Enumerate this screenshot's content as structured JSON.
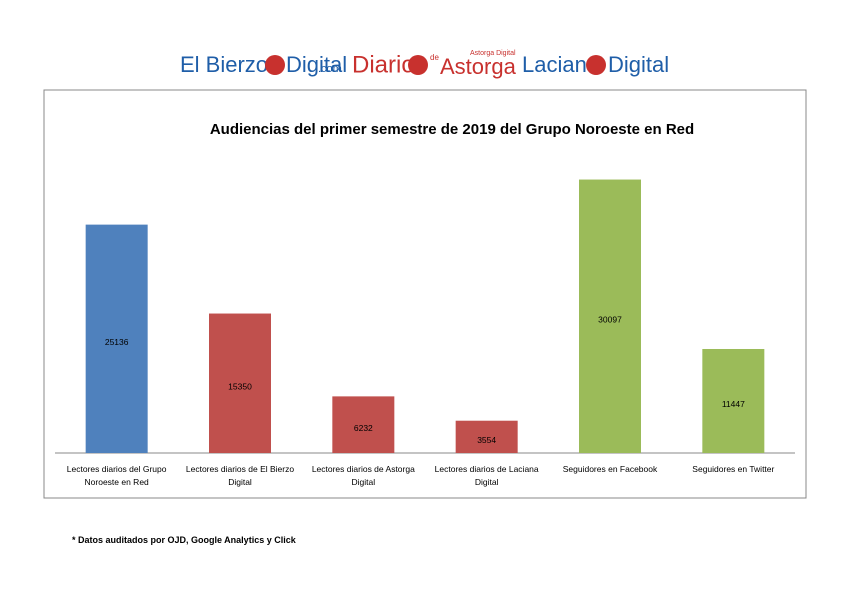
{
  "logos": [
    {
      "parts": [
        "El Bierzo",
        "Digital",
        ".com"
      ]
    },
    {
      "parts": [
        "Diario",
        "de",
        "Astorga",
        "Astorga Digital"
      ]
    },
    {
      "parts": [
        "Laciana",
        "Digital"
      ]
    }
  ],
  "chart_data": {
    "type": "bar",
    "title": "Audiencias del primer semestre de 2019 del Grupo Noroeste en Red",
    "categories": [
      "Lectores diarios del Grupo Noroeste en Red",
      "Lectores diarios de El Bierzo Digital",
      "Lectores diarios de Astorga Digital",
      "Lectores diarios de Laciana Digital",
      "Seguidores en Facebook",
      "Seguidores en Twitter"
    ],
    "values": [
      25136,
      15350,
      6232,
      3554,
      30097,
      11447
    ],
    "colors": [
      "#4f81bd",
      "#c0504d",
      "#c0504d",
      "#c0504d",
      "#9bbb59",
      "#9bbb59"
    ],
    "ylim": [
      0,
      35000
    ]
  },
  "footnote": "* Datos auditados por OJD, Google Analytics y Click"
}
